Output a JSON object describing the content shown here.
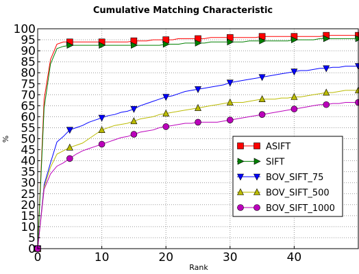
{
  "chart_data": {
    "type": "line",
    "title": "Cumulative Matching Characteristic",
    "xlabel": "Rank",
    "ylabel": "%",
    "xlim": [
      0,
      50
    ],
    "ylim": [
      0,
      100
    ],
    "xticks": [
      0,
      10,
      20,
      30,
      40
    ],
    "yticks": [
      0,
      5,
      10,
      15,
      20,
      25,
      30,
      35,
      40,
      45,
      50,
      55,
      60,
      65,
      70,
      75,
      80,
      85,
      90,
      95,
      100
    ],
    "grid": true,
    "legend_position": "center-right",
    "x": [
      0,
      1,
      2,
      3,
      4,
      5,
      6,
      7,
      8,
      9,
      10,
      11,
      12,
      13,
      14,
      15,
      16,
      17,
      18,
      19,
      20,
      21,
      22,
      23,
      24,
      25,
      26,
      27,
      28,
      29,
      30,
      31,
      32,
      33,
      34,
      35,
      36,
      37,
      38,
      39,
      40,
      41,
      42,
      43,
      44,
      45,
      46,
      47,
      48,
      49,
      50
    ],
    "marker_every": 5,
    "series": [
      {
        "name": "ASIFT",
        "color": "#ff0000",
        "marker": "square",
        "values": [
          0,
          68,
          86,
          93,
          94,
          94,
          94,
          94,
          94,
          94,
          94,
          94,
          94,
          94,
          94,
          94.5,
          94.5,
          94.5,
          95,
          95,
          95,
          95,
          95.5,
          95.5,
          95.5,
          95.5,
          95.5,
          96,
          96,
          96,
          96,
          96,
          96,
          96,
          96,
          96.5,
          96.5,
          96.5,
          96.5,
          96.5,
          96.5,
          96.5,
          96.5,
          96.5,
          96.5,
          97,
          97,
          97,
          97,
          97,
          97
        ]
      },
      {
        "name": "SIFT",
        "color": "#008000",
        "marker": "triangle-right",
        "values": [
          0,
          64,
          84,
          91,
          92,
          92.5,
          92.5,
          92.5,
          92.5,
          92.5,
          92.5,
          92.5,
          92.5,
          92.5,
          92.5,
          92.5,
          92.5,
          92.5,
          92.5,
          92.5,
          93,
          93,
          93,
          93.5,
          93.5,
          93.5,
          93.5,
          94,
          94,
          94,
          94,
          94,
          94,
          94.5,
          94.5,
          94.5,
          94.5,
          94.5,
          94.5,
          94.5,
          95,
          95,
          95,
          95,
          95.5,
          95.5,
          95.5,
          95.5,
          95.5,
          95.5,
          95.5
        ]
      },
      {
        "name": "BOV_SIFT_75",
        "color": "#0000ff",
        "marker": "triangle-down",
        "values": [
          0,
          29,
          39,
          48.5,
          51,
          54,
          55,
          56,
          57.5,
          58.5,
          59.5,
          60.5,
          61,
          62,
          62.5,
          63.5,
          65,
          66,
          67,
          68,
          69,
          69.5,
          70.5,
          71.5,
          72,
          72.5,
          73,
          73.5,
          74,
          74.5,
          75.5,
          76,
          76.5,
          77,
          77.5,
          78,
          78.5,
          79,
          79.5,
          80,
          80.5,
          81,
          81,
          81.5,
          82,
          82,
          82.5,
          82.5,
          83,
          83,
          83
        ]
      },
      {
        "name": "BOV_SIFT_500",
        "color": "#bbbb00",
        "marker": "triangle-up",
        "values": [
          0,
          28,
          37,
          43,
          44.5,
          46,
          47,
          48,
          50,
          52,
          54,
          55,
          56,
          56.5,
          57,
          58,
          59,
          59.5,
          60,
          61,
          61.5,
          62,
          62.5,
          63,
          63.5,
          64,
          64.5,
          65,
          65.5,
          66,
          66.5,
          66.5,
          66.5,
          67,
          67.5,
          68,
          68,
          68,
          68.5,
          68.5,
          69,
          69,
          69.5,
          70,
          70.5,
          71,
          71,
          71.5,
          72,
          72,
          72
        ]
      },
      {
        "name": "BOV_SIFT_1000",
        "color": "#bb00bb",
        "marker": "circle",
        "values": [
          0,
          27,
          34,
          37.5,
          39,
          41,
          43,
          44.5,
          45.5,
          46.5,
          47.5,
          48.5,
          49.5,
          50.5,
          51,
          52,
          53,
          53.5,
          54,
          55,
          55.5,
          56,
          56.5,
          57,
          57,
          57.5,
          57.5,
          57.5,
          57.5,
          58,
          58.5,
          59,
          59.5,
          60,
          60.5,
          61,
          61.5,
          62,
          62.5,
          63,
          63.5,
          64,
          64.5,
          65,
          65.5,
          65.5,
          66,
          66,
          66.5,
          66.5,
          66.5
        ]
      }
    ]
  }
}
